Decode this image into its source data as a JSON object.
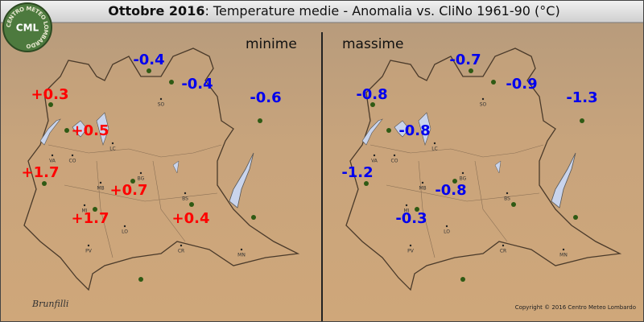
{
  "header": {
    "title_bold": "Ottobre 2016",
    "title_rest": ": Temperature medie - Anomalia vs. CliNo 1961-90 (°C)"
  },
  "logo": {
    "short": "CML",
    "ring": "CENTRO METEO LOMBARDO"
  },
  "panels": [
    {
      "label": "minime",
      "anomalies": [
        "-0.4",
        "-0.4",
        "-0.6",
        "+0.3",
        "+0.5",
        "+1.7",
        "+0.7",
        "+1.7",
        "+0.4"
      ]
    },
    {
      "label": "massime",
      "anomalies": [
        "-0.7",
        "-0.9",
        "-1.3",
        "-0.8",
        "-0.8",
        "-1.2",
        "-0.8",
        "-0.3"
      ]
    }
  ],
  "cities": [
    "SO",
    "LC",
    "CO",
    "VA",
    "BG",
    "MB",
    "MI",
    "BS",
    "LO",
    "CR",
    "PV",
    "MN"
  ],
  "signature": "Brunfilli",
  "copyright": "Copyright © 2016 Centro Meteo Lombardo"
}
